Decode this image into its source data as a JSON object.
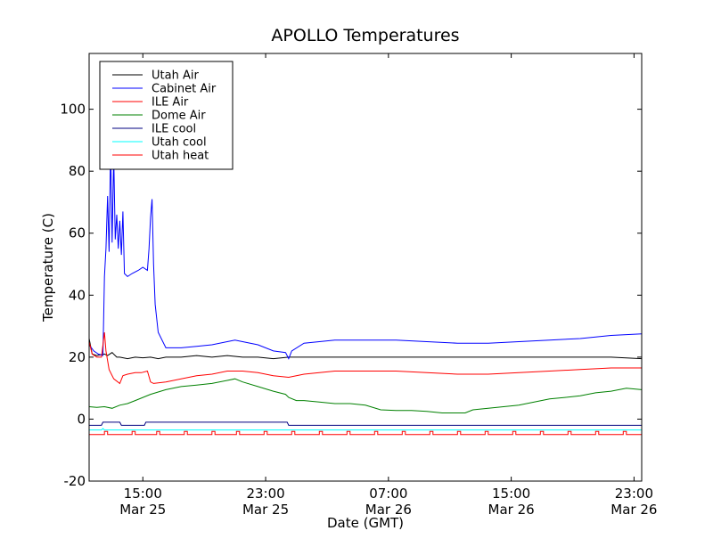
{
  "chart_data": {
    "type": "line",
    "title": "APOLLO Temperatures",
    "xlabel": "Date (GMT)",
    "ylabel": "Temperature (C)",
    "ylim": [
      -20,
      118
    ],
    "xlim_hours": [
      0,
      36
    ],
    "x_unit": "hours since Mar 25 11:30 GMT",
    "grid": false,
    "legend_position": "top-left",
    "y_ticks": [
      {
        "value": -20,
        "label": "-20"
      },
      {
        "value": 0,
        "label": "0"
      },
      {
        "value": 20,
        "label": "20"
      },
      {
        "value": 40,
        "label": "40"
      },
      {
        "value": 60,
        "label": "60"
      },
      {
        "value": 80,
        "label": "80"
      },
      {
        "value": 100,
        "label": "100"
      }
    ],
    "x_ticks": [
      {
        "value": 3.5,
        "time": "15:00",
        "date": "Mar 25"
      },
      {
        "value": 11.5,
        "time": "23:00",
        "date": "Mar 25"
      },
      {
        "value": 19.5,
        "time": "07:00",
        "date": "Mar 26"
      },
      {
        "value": 27.5,
        "time": "15:00",
        "date": "Mar 26"
      },
      {
        "value": 35.5,
        "time": "23:00",
        "date": "Mar 26"
      }
    ],
    "series": [
      {
        "name": "Utah Air",
        "color": "#000000",
        "points": [
          [
            0,
            26
          ],
          [
            0.2,
            21
          ],
          [
            0.5,
            20.5
          ],
          [
            1.0,
            21
          ],
          [
            1.2,
            20.5
          ],
          [
            1.5,
            21.5
          ],
          [
            1.8,
            20
          ],
          [
            2.0,
            20
          ],
          [
            2.5,
            19.5
          ],
          [
            3.0,
            20
          ],
          [
            3.5,
            19.8
          ],
          [
            4.0,
            20
          ],
          [
            4.5,
            19.5
          ],
          [
            5,
            20
          ],
          [
            6,
            20
          ],
          [
            7,
            20.5
          ],
          [
            8,
            20
          ],
          [
            9,
            20.5
          ],
          [
            10,
            20
          ],
          [
            11,
            20
          ],
          [
            12,
            19.5
          ],
          [
            13,
            20
          ],
          [
            14,
            20
          ],
          [
            15,
            20
          ],
          [
            16,
            20
          ],
          [
            18,
            20
          ],
          [
            20,
            20
          ],
          [
            22,
            20
          ],
          [
            24,
            20
          ],
          [
            26,
            20
          ],
          [
            28,
            20
          ],
          [
            30,
            20
          ],
          [
            32,
            20
          ],
          [
            34,
            20
          ],
          [
            36,
            19.5
          ]
        ]
      },
      {
        "name": "Cabinet Air",
        "color": "#0000ff",
        "points": [
          [
            0,
            24
          ],
          [
            0.3,
            22
          ],
          [
            0.6,
            21
          ],
          [
            0.9,
            20.5
          ],
          [
            1.0,
            46
          ],
          [
            1.1,
            55
          ],
          [
            1.2,
            72
          ],
          [
            1.3,
            54
          ],
          [
            1.4,
            88
          ],
          [
            1.5,
            57
          ],
          [
            1.6,
            85
          ],
          [
            1.7,
            58
          ],
          [
            1.8,
            66
          ],
          [
            1.9,
            55
          ],
          [
            2.0,
            64
          ],
          [
            2.1,
            53
          ],
          [
            2.2,
            67
          ],
          [
            2.3,
            47
          ],
          [
            2.5,
            46
          ],
          [
            2.8,
            47
          ],
          [
            3.2,
            48
          ],
          [
            3.5,
            49
          ],
          [
            3.8,
            48
          ],
          [
            3.9,
            55
          ],
          [
            4.0,
            65
          ],
          [
            4.1,
            71
          ],
          [
            4.2,
            50
          ],
          [
            4.3,
            37
          ],
          [
            4.5,
            28
          ],
          [
            5.0,
            23
          ],
          [
            6,
            23
          ],
          [
            7,
            23.5
          ],
          [
            8,
            24
          ],
          [
            9,
            25
          ],
          [
            9.5,
            25.5
          ],
          [
            10,
            25
          ],
          [
            11,
            24
          ],
          [
            12,
            22
          ],
          [
            12.8,
            21.5
          ],
          [
            13.0,
            19.5
          ],
          [
            13.2,
            22
          ],
          [
            14,
            24.5
          ],
          [
            15,
            25
          ],
          [
            16,
            25.5
          ],
          [
            18,
            25.5
          ],
          [
            20,
            25.5
          ],
          [
            22,
            25
          ],
          [
            24,
            24.5
          ],
          [
            26,
            24.5
          ],
          [
            28,
            25
          ],
          [
            30,
            25.5
          ],
          [
            32,
            26
          ],
          [
            34,
            27
          ],
          [
            36,
            27.5
          ]
        ]
      },
      {
        "name": "ILE Air",
        "color": "#ff0000",
        "points": [
          [
            0,
            25
          ],
          [
            0.2,
            21
          ],
          [
            0.5,
            20
          ],
          [
            0.8,
            20
          ],
          [
            1.0,
            28
          ],
          [
            1.1,
            22
          ],
          [
            1.3,
            16
          ],
          [
            1.6,
            13
          ],
          [
            2.0,
            11.5
          ],
          [
            2.2,
            14
          ],
          [
            2.5,
            14.5
          ],
          [
            3.0,
            15
          ],
          [
            3.4,
            15
          ],
          [
            3.8,
            15.5
          ],
          [
            4.0,
            12
          ],
          [
            4.2,
            11.5
          ],
          [
            5,
            12
          ],
          [
            6,
            13
          ],
          [
            7,
            14
          ],
          [
            8,
            14.5
          ],
          [
            9,
            15.5
          ],
          [
            10,
            15.5
          ],
          [
            11,
            15
          ],
          [
            12,
            14
          ],
          [
            13,
            13.5
          ],
          [
            14,
            14.5
          ],
          [
            15,
            15
          ],
          [
            16,
            15.5
          ],
          [
            18,
            15.5
          ],
          [
            20,
            15.5
          ],
          [
            22,
            15
          ],
          [
            24,
            14.5
          ],
          [
            26,
            14.5
          ],
          [
            28,
            15
          ],
          [
            30,
            15.5
          ],
          [
            32,
            16
          ],
          [
            34,
            16.5
          ],
          [
            36,
            16.5
          ]
        ]
      },
      {
        "name": "Dome Air",
        "color": "#008000",
        "points": [
          [
            0,
            4
          ],
          [
            0.5,
            3.8
          ],
          [
            1.0,
            4
          ],
          [
            1.5,
            3.5
          ],
          [
            2.0,
            4.5
          ],
          [
            2.5,
            5
          ],
          [
            3,
            6
          ],
          [
            4,
            8
          ],
          [
            5,
            9.5
          ],
          [
            6,
            10.5
          ],
          [
            7,
            11
          ],
          [
            8,
            11.5
          ],
          [
            9,
            12.5
          ],
          [
            9.5,
            13
          ],
          [
            10,
            12
          ],
          [
            11,
            10.5
          ],
          [
            12,
            9
          ],
          [
            12.8,
            8
          ],
          [
            13,
            7
          ],
          [
            13.5,
            6
          ],
          [
            14,
            6
          ],
          [
            15,
            5.5
          ],
          [
            16,
            5
          ],
          [
            17,
            5
          ],
          [
            18,
            4.5
          ],
          [
            19,
            3
          ],
          [
            20,
            2.8
          ],
          [
            21,
            2.8
          ],
          [
            22,
            2.5
          ],
          [
            23,
            2
          ],
          [
            24,
            2
          ],
          [
            24.5,
            2
          ],
          [
            25,
            3
          ],
          [
            26,
            3.5
          ],
          [
            27,
            4
          ],
          [
            28,
            4.5
          ],
          [
            29,
            5.5
          ],
          [
            30,
            6.5
          ],
          [
            31,
            7
          ],
          [
            32,
            7.5
          ],
          [
            33,
            8.5
          ],
          [
            34,
            9
          ],
          [
            35,
            10
          ],
          [
            36,
            9.5
          ]
        ]
      },
      {
        "name": "ILE cool",
        "color": "#000080",
        "points": [
          [
            0,
            -2
          ],
          [
            0.8,
            -2
          ],
          [
            0.9,
            -1
          ],
          [
            2.0,
            -1
          ],
          [
            2.1,
            -2
          ],
          [
            3.6,
            -2
          ],
          [
            3.7,
            -1
          ],
          [
            12.9,
            -1
          ],
          [
            13.0,
            -2
          ],
          [
            36,
            -2
          ]
        ]
      },
      {
        "name": "Utah cool",
        "color": "#00ffff",
        "points": [
          [
            0,
            -3.5
          ],
          [
            0.8,
            -3.5
          ],
          [
            0.9,
            -3
          ],
          [
            1.0,
            -3.5
          ],
          [
            36,
            -3.5
          ]
        ]
      },
      {
        "name": "Utah heat",
        "color": "#ff0000",
        "points": [
          [
            0,
            -5
          ],
          [
            1.0,
            -5
          ],
          [
            1.0,
            -4
          ],
          [
            1.2,
            -4
          ],
          [
            1.2,
            -5
          ],
          [
            2.8,
            -5
          ],
          [
            2.8,
            -4
          ],
          [
            3.0,
            -4
          ],
          [
            3.0,
            -5
          ],
          [
            4.4,
            -5
          ],
          [
            4.4,
            -4
          ],
          [
            4.6,
            -4
          ],
          [
            4.6,
            -5
          ],
          [
            6.2,
            -5
          ],
          [
            6.2,
            -4
          ],
          [
            6.4,
            -4
          ],
          [
            6.4,
            -5
          ],
          [
            8.0,
            -5
          ],
          [
            8.0,
            -4
          ],
          [
            8.2,
            -4
          ],
          [
            8.2,
            -5
          ],
          [
            9.6,
            -5
          ],
          [
            9.6,
            -4
          ],
          [
            9.8,
            -4
          ],
          [
            9.8,
            -5
          ],
          [
            11.4,
            -5
          ],
          [
            11.4,
            -4
          ],
          [
            11.6,
            -4
          ],
          [
            11.6,
            -5
          ],
          [
            13.2,
            -5
          ],
          [
            13.2,
            -4
          ],
          [
            13.4,
            -4
          ],
          [
            13.4,
            -5
          ],
          [
            15.0,
            -5
          ],
          [
            15.0,
            -4
          ],
          [
            15.2,
            -4
          ],
          [
            15.2,
            -5
          ],
          [
            16.8,
            -5
          ],
          [
            16.8,
            -4
          ],
          [
            17.0,
            -4
          ],
          [
            17.0,
            -5
          ],
          [
            18.6,
            -5
          ],
          [
            18.6,
            -4
          ],
          [
            18.8,
            -4
          ],
          [
            18.8,
            -5
          ],
          [
            20.4,
            -5
          ],
          [
            20.4,
            -4
          ],
          [
            20.6,
            -4
          ],
          [
            20.6,
            -5
          ],
          [
            22.2,
            -5
          ],
          [
            22.2,
            -4
          ],
          [
            22.4,
            -4
          ],
          [
            22.4,
            -5
          ],
          [
            24.0,
            -5
          ],
          [
            24.0,
            -4
          ],
          [
            24.2,
            -4
          ],
          [
            24.2,
            -5
          ],
          [
            25.8,
            -5
          ],
          [
            25.8,
            -4
          ],
          [
            26.0,
            -4
          ],
          [
            26.0,
            -5
          ],
          [
            27.6,
            -5
          ],
          [
            27.6,
            -4
          ],
          [
            27.8,
            -4
          ],
          [
            27.8,
            -5
          ],
          [
            29.4,
            -5
          ],
          [
            29.4,
            -4
          ],
          [
            29.6,
            -4
          ],
          [
            29.6,
            -5
          ],
          [
            31.2,
            -5
          ],
          [
            31.2,
            -4
          ],
          [
            31.4,
            -4
          ],
          [
            31.4,
            -5
          ],
          [
            33.0,
            -5
          ],
          [
            33.0,
            -4
          ],
          [
            33.2,
            -4
          ],
          [
            33.2,
            -5
          ],
          [
            34.8,
            -5
          ],
          [
            34.8,
            -4
          ],
          [
            35.0,
            -4
          ],
          [
            35.0,
            -5
          ],
          [
            36,
            -5
          ]
        ]
      }
    ]
  }
}
